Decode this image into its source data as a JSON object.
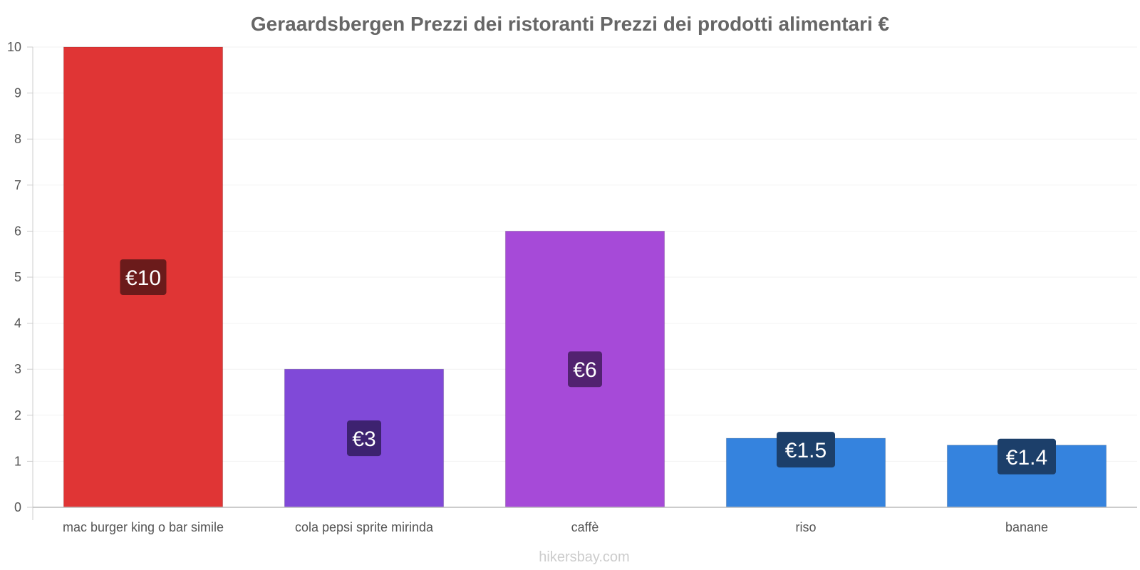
{
  "chart_data": {
    "type": "bar",
    "title": "Geraardsbergen Prezzi dei ristoranti Prezzi dei prodotti alimentari €",
    "categories": [
      "mac burger king o bar simile",
      "cola pepsi sprite mirinda",
      "caffè",
      "riso",
      "banane"
    ],
    "values": [
      10,
      3,
      6,
      1.5,
      1.35
    ],
    "data_labels": [
      "€10",
      "€3",
      "€6",
      "€1.5",
      "€1.4"
    ],
    "bar_colors": [
      "#e03535",
      "#8049d8",
      "#a64ad8",
      "#3583de",
      "#3583de"
    ],
    "label_bg_colors": [
      "#6b1b1b",
      "#3d2270",
      "#522270",
      "#1c3f6a",
      "#1c3f6a"
    ],
    "ylim": [
      0,
      10
    ],
    "yticks": [
      "0",
      "1",
      "2",
      "3",
      "4",
      "5",
      "6",
      "7",
      "8",
      "9",
      "10"
    ],
    "xlabel": "",
    "ylabel": "",
    "grid": true,
    "legend": "none"
  },
  "footer": {
    "source": "hikersbay.com"
  }
}
